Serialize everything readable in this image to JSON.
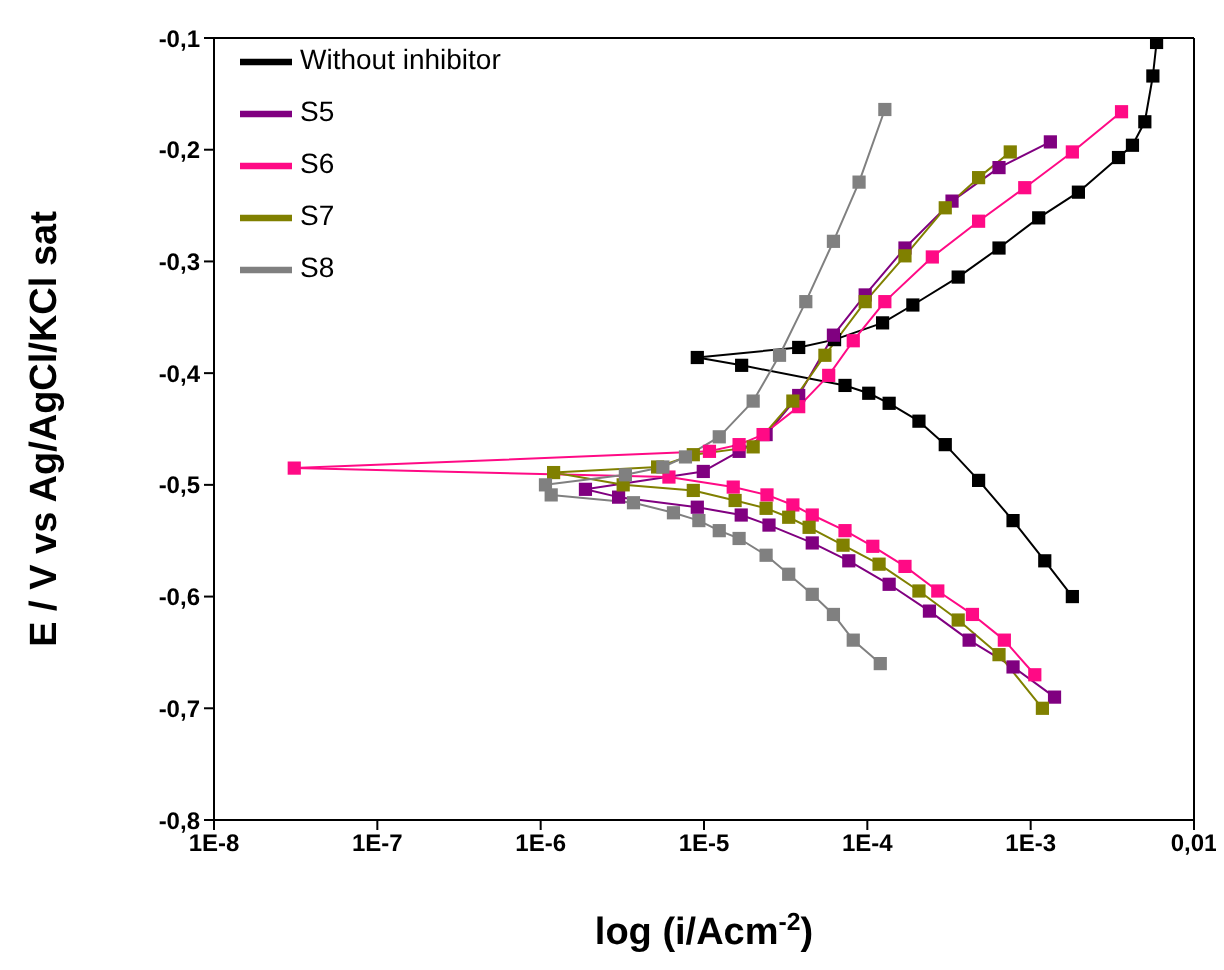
{
  "chart_data": {
    "type": "line",
    "xlabel": "log (i/Acm$^{-2}$)",
    "ylabel": "E / V vs Ag/AgCl/KCl sat",
    "log": "x",
    "xlim": [
      1e-08,
      0.01
    ],
    "ylim": [
      -0.8,
      -0.1
    ],
    "xticks": [
      {
        "value": 1e-08,
        "label": "1E-8"
      },
      {
        "value": 1e-07,
        "label": "1E-7"
      },
      {
        "value": 1e-06,
        "label": "1E-6"
      },
      {
        "value": 1e-05,
        "label": "1E-5"
      },
      {
        "value": 0.0001,
        "label": "1E-4"
      },
      {
        "value": 0.001,
        "label": "1E-3"
      },
      {
        "value": 0.01,
        "label": "0,01"
      }
    ],
    "yticks": [
      {
        "value": -0.8,
        "label": "-0,8"
      },
      {
        "value": -0.7,
        "label": "-0,7"
      },
      {
        "value": -0.6,
        "label": "-0,6"
      },
      {
        "value": -0.5,
        "label": "-0,5"
      },
      {
        "value": -0.4,
        "label": "-0,4"
      },
      {
        "value": -0.3,
        "label": "-0,3"
      },
      {
        "value": -0.2,
        "label": "-0,2"
      },
      {
        "value": -0.1,
        "label": "-0,1"
      }
    ],
    "marker": "square",
    "line_style": "solid",
    "grid": false,
    "legend": "top left",
    "series": [
      {
        "name": "Without inhibitor",
        "color": "#000000",
        "x": [
          0.0018,
          0.00122,
          0.00078,
          0.00048,
          0.0003,
          0.000207,
          0.000136,
          0.000102,
          7.3e-05,
          1.7e-05,
          9.1e-06,
          3.8e-05,
          6.3e-05,
          0.000124,
          0.00019,
          0.00036,
          0.00064,
          0.00112,
          0.00196,
          0.00345,
          0.0042,
          0.005,
          0.0056,
          0.0059
        ],
        "values": [
          -0.6,
          -0.568,
          -0.532,
          -0.496,
          -0.464,
          -0.443,
          -0.427,
          -0.418,
          -0.411,
          -0.393,
          -0.386,
          -0.377,
          -0.37,
          -0.355,
          -0.339,
          -0.314,
          -0.288,
          -0.261,
          -0.238,
          -0.207,
          -0.196,
          -0.175,
          -0.134,
          -0.104
        ]
      },
      {
        "name": "S5",
        "color": "#800080",
        "x": [
          0.0014,
          0.00078,
          0.00042,
          0.00024,
          0.000136,
          7.7e-05,
          4.6e-05,
          2.5e-05,
          1.69e-05,
          9.1e-06,
          3e-06,
          1.88e-06,
          9.9e-06,
          1.64e-05,
          2.4e-05,
          3.8e-05,
          6.2e-05,
          9.7e-05,
          0.00017,
          0.00033,
          0.00064,
          0.00132
        ],
        "values": [
          -0.69,
          -0.663,
          -0.639,
          -0.613,
          -0.589,
          -0.568,
          -0.552,
          -0.536,
          -0.527,
          -0.52,
          -0.511,
          -0.504,
          -0.488,
          -0.47,
          -0.455,
          -0.42,
          -0.366,
          -0.33,
          -0.288,
          -0.246,
          -0.216,
          -0.193
        ]
      },
      {
        "name": "S6",
        "color": "#ff0a85",
        "x": [
          0.00106,
          0.00069,
          0.00044,
          0.00027,
          0.00017,
          0.000108,
          7.3e-05,
          4.6e-05,
          3.5e-05,
          2.43e-05,
          1.51e-05,
          6.1e-06,
          3.1e-08,
          1.08e-05,
          1.64e-05,
          2.3e-05,
          3.8e-05,
          5.8e-05,
          8.2e-05,
          0.000128,
          0.00025,
          0.00048,
          0.00092,
          0.0018,
          0.0036
        ],
        "values": [
          -0.67,
          -0.639,
          -0.616,
          -0.595,
          -0.573,
          -0.555,
          -0.541,
          -0.527,
          -0.518,
          -0.509,
          -0.502,
          -0.493,
          -0.485,
          -0.47,
          -0.464,
          -0.455,
          -0.43,
          -0.402,
          -0.371,
          -0.336,
          -0.296,
          -0.264,
          -0.234,
          -0.202,
          -0.166
        ]
      },
      {
        "name": "S7",
        "color": "#808000",
        "x": [
          0.00118,
          0.00064,
          0.00036,
          0.000207,
          0.000118,
          7.1e-05,
          4.4e-05,
          3.3e-05,
          2.4e-05,
          1.55e-05,
          8.6e-06,
          3.2e-06,
          1.2e-06,
          5.2e-06,
          8.6e-06,
          2e-05,
          3.5e-05,
          5.5e-05,
          9.7e-05,
          0.00017,
          0.0003,
          0.00048,
          0.00075
        ],
        "values": [
          -0.7,
          -0.652,
          -0.621,
          -0.595,
          -0.571,
          -0.554,
          -0.538,
          -0.529,
          -0.521,
          -0.514,
          -0.505,
          -0.5,
          -0.489,
          -0.484,
          -0.473,
          -0.466,
          -0.425,
          -0.384,
          -0.336,
          -0.295,
          -0.252,
          -0.225,
          -0.202
        ]
      },
      {
        "name": "S8",
        "color": "#808080",
        "x": [
          0.00012,
          8.2e-05,
          6.2e-05,
          4.6e-05,
          3.3e-05,
          2.4e-05,
          1.64e-05,
          1.24e-05,
          9.3e-06,
          6.5e-06,
          3.7e-06,
          1.16e-06,
          1.07e-06,
          3.3e-06,
          5.6e-06,
          7.7e-06,
          1.24e-05,
          2e-05,
          2.9e-05,
          4.2e-05,
          6.2e-05,
          8.9e-05,
          0.000128
        ],
        "values": [
          -0.66,
          -0.639,
          -0.616,
          -0.598,
          -0.58,
          -0.563,
          -0.548,
          -0.541,
          -0.532,
          -0.525,
          -0.516,
          -0.509,
          -0.5,
          -0.491,
          -0.484,
          -0.475,
          -0.457,
          -0.425,
          -0.384,
          -0.336,
          -0.282,
          -0.229,
          -0.164
        ]
      }
    ]
  }
}
